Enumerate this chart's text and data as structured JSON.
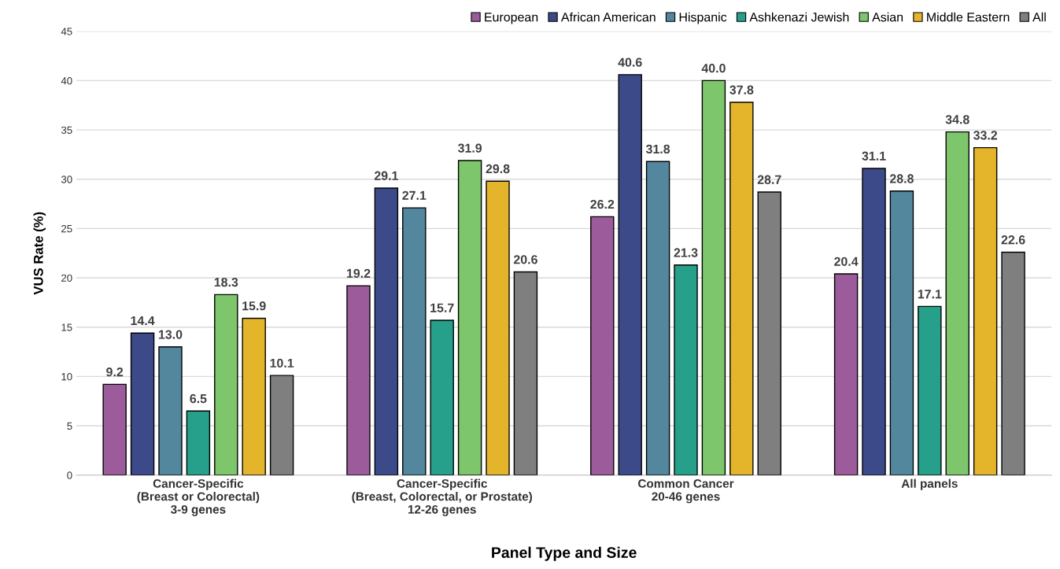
{
  "chart_data": {
    "type": "bar",
    "xlabel": "Panel Type and Size",
    "ylabel": "VUS Rate (%)",
    "categories": [
      "Cancer-Specific\n(Breast or Colorectal)\n3-9 genes",
      "Cancer-Specific\n(Breast, Colorectal, or Prostate)\n12-26 genes",
      "Common Cancer\n20-46 genes",
      "All panels"
    ],
    "series": [
      {
        "name": "European",
        "color": "#9c5b9b",
        "values": [
          9.2,
          19.2,
          26.2,
          20.4
        ],
        "value_labels": [
          "9.2",
          "19.2",
          "26.2",
          "20.4"
        ]
      },
      {
        "name": "African American",
        "color": "#3d4a8a",
        "values": [
          14.4,
          29.1,
          40.6,
          31.1
        ],
        "value_labels": [
          "14.4",
          "29.1",
          "40.6",
          "31.1"
        ]
      },
      {
        "name": "Hispanic",
        "color": "#52879d",
        "values": [
          13.0,
          27.1,
          31.8,
          28.8
        ],
        "value_labels": [
          "13.0",
          "27.1",
          "31.8",
          "28.8"
        ]
      },
      {
        "name": "Ashkenazi Jewish",
        "color": "#26a08a",
        "values": [
          6.5,
          15.7,
          21.3,
          17.1
        ],
        "value_labels": [
          "6.5",
          "15.7",
          "21.3",
          "17.1"
        ]
      },
      {
        "name": "Asian",
        "color": "#7dc66b",
        "values": [
          18.3,
          31.9,
          40.0,
          34.8
        ],
        "value_labels": [
          "18.3",
          "31.9",
          "40.0",
          "34.8"
        ]
      },
      {
        "name": "Middle Eastern",
        "color": "#e4b52a",
        "values": [
          15.9,
          29.8,
          37.8,
          33.2
        ],
        "value_labels": [
          "15.9",
          "29.8",
          "37.8",
          "33.2"
        ]
      },
      {
        "name": "All",
        "color": "#7f7f7f",
        "values": [
          10.1,
          20.6,
          28.7,
          22.6
        ],
        "value_labels": [
          "10.1",
          "20.6",
          "28.7",
          "22.6"
        ]
      }
    ],
    "ylim": [
      0,
      45
    ],
    "yticks": [
      0,
      5,
      10,
      15,
      20,
      25,
      30,
      35,
      40,
      45
    ],
    "grid": "y",
    "legend": "top right"
  }
}
